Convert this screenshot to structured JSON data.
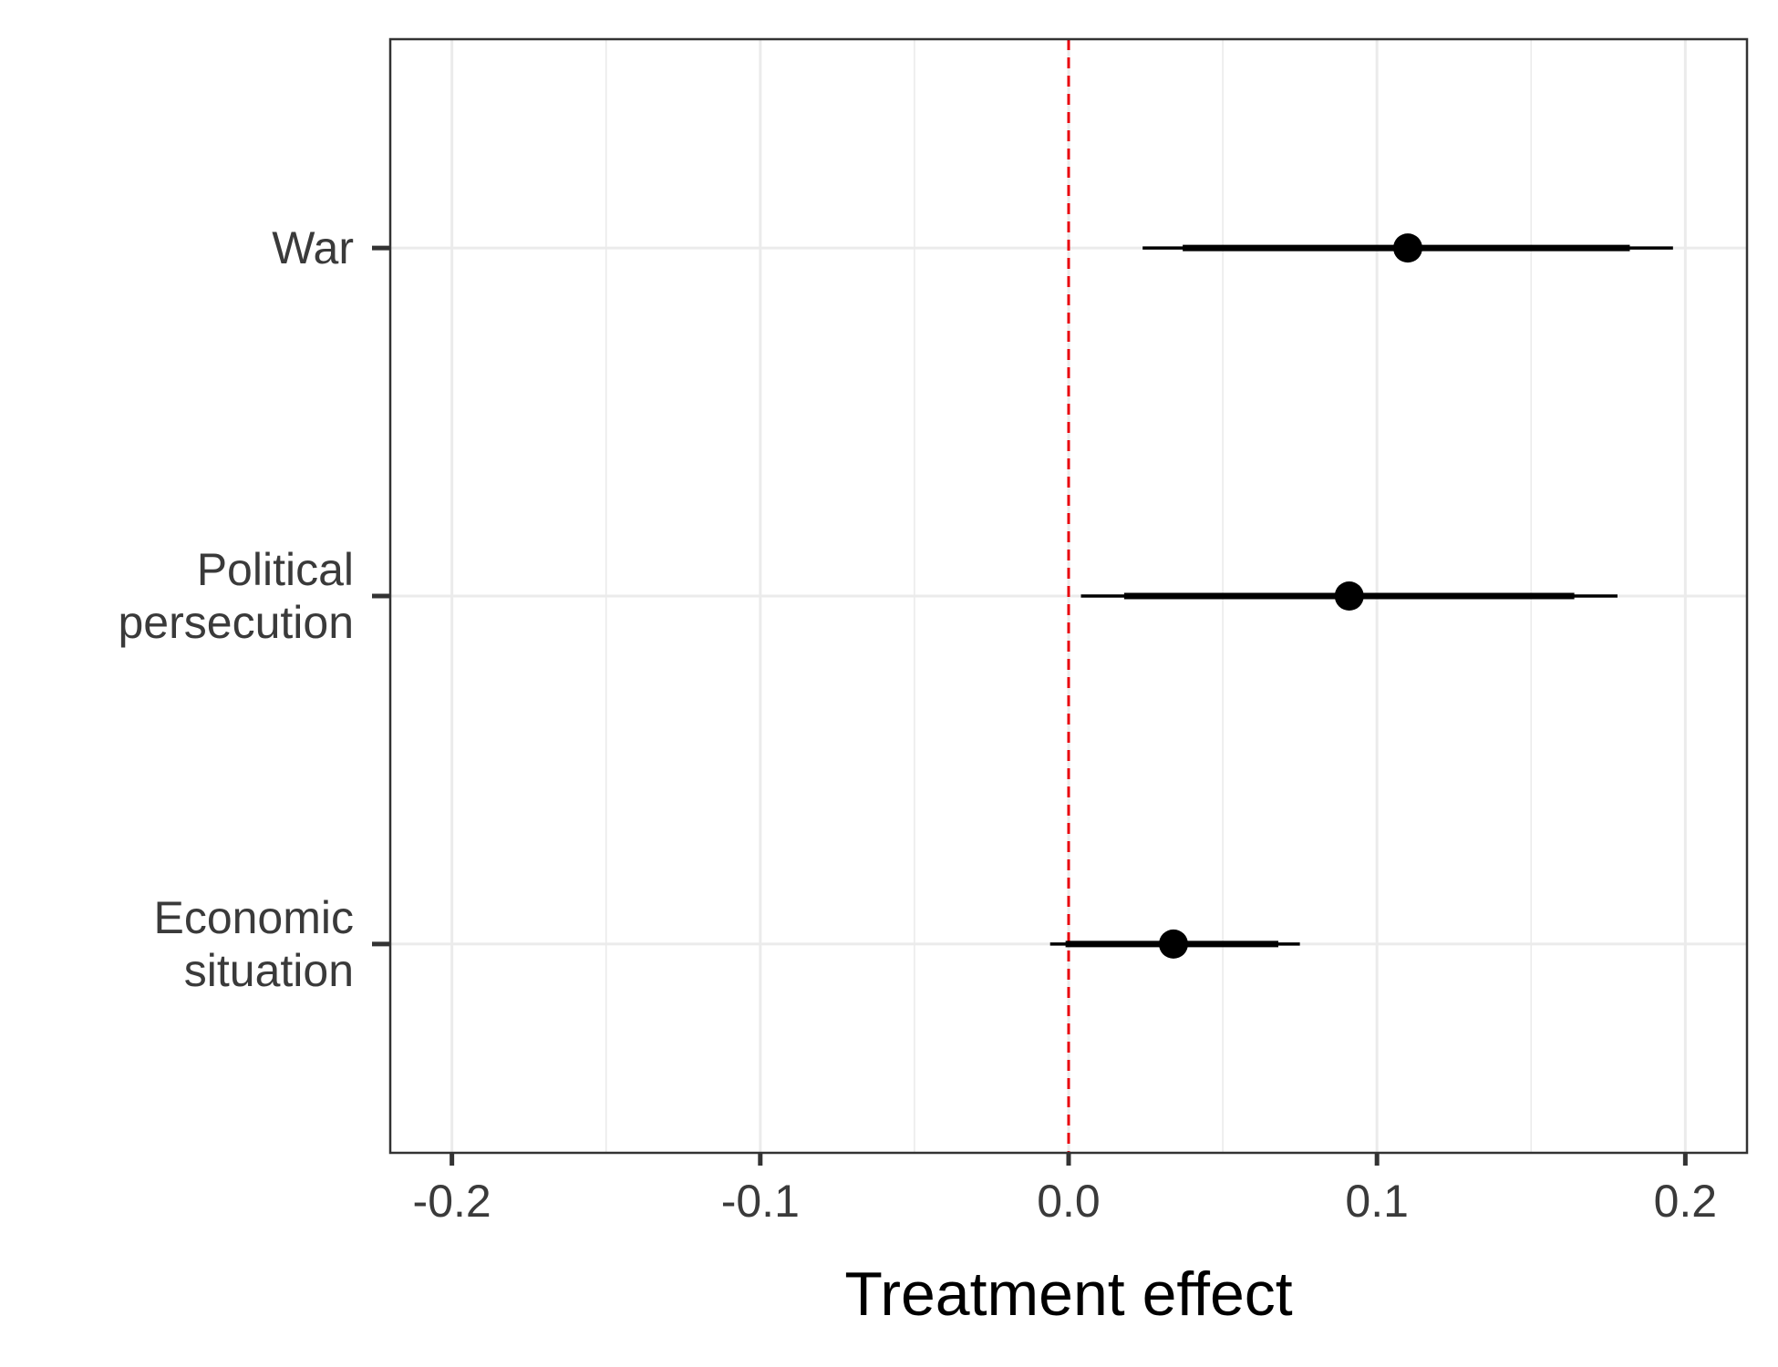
{
  "chart_data": {
    "type": "coefficient-plot",
    "xlabel": "Treatment effect",
    "ylabel": "",
    "xlim": [
      -0.22,
      0.22
    ],
    "x_ticks": [
      -0.2,
      -0.1,
      0.0,
      0.1,
      0.2
    ],
    "x_tick_labels": [
      "-0.2",
      "-0.1",
      "0.0",
      "0.1",
      "0.2"
    ],
    "grid": true,
    "reference_line": {
      "x": 0.0,
      "style": "dashed",
      "color": "#e8000b"
    },
    "categories": [
      {
        "label_lines": [
          "War"
        ],
        "estimate": 0.11,
        "ci_inner": [
          0.037,
          0.182
        ],
        "ci_outer": [
          0.024,
          0.196
        ]
      },
      {
        "label_lines": [
          "Political",
          "persecution"
        ],
        "estimate": 0.091,
        "ci_inner": [
          0.018,
          0.164
        ],
        "ci_outer": [
          0.004,
          0.178
        ]
      },
      {
        "label_lines": [
          "Economic",
          "situation"
        ],
        "estimate": 0.034,
        "ci_inner": [
          -0.001,
          0.068
        ],
        "ci_outer": [
          -0.006,
          0.075
        ]
      }
    ],
    "colors": {
      "point": "#000000",
      "grid": "#ebebeb",
      "frame": "#333333"
    }
  }
}
